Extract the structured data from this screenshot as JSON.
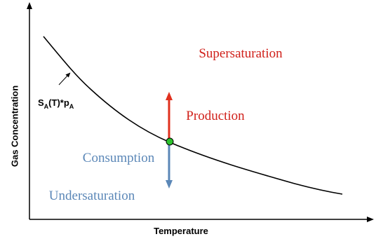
{
  "axes": {
    "x_label": "Temperature",
    "y_label": "Gas Concentration"
  },
  "curve_label": {
    "base": "S",
    "sub1": "A",
    "middle": "(T)*p",
    "sub2": "A"
  },
  "regions": {
    "above": "Supersaturation",
    "below": "Undersaturation"
  },
  "arrows": {
    "up": "Production",
    "down": "Consumption"
  }
}
